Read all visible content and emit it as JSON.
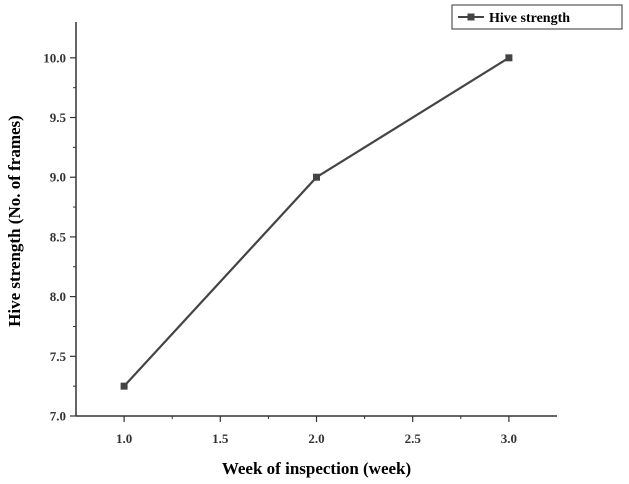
{
  "chart_data": {
    "type": "line",
    "xlabel": "Week of inspection (week)",
    "ylabel": "Hive strength (No. of frames)",
    "xlim": [
      0.75,
      3.25
    ],
    "ylim": [
      7.0,
      10.3
    ],
    "x_ticks": [
      "1.0",
      "1.5",
      "2.0",
      "2.5",
      "3.0"
    ],
    "y_ticks": [
      "7.0",
      "7.5",
      "8.0",
      "8.5",
      "9.0",
      "9.5",
      "10.0"
    ],
    "grid": false,
    "legend_position": "top-right",
    "series": [
      {
        "name": "Hive strength",
        "color": "#444444",
        "marker": "square",
        "x": [
          1.0,
          2.0,
          3.0
        ],
        "y": [
          7.25,
          9.0,
          10.0
        ]
      }
    ]
  }
}
